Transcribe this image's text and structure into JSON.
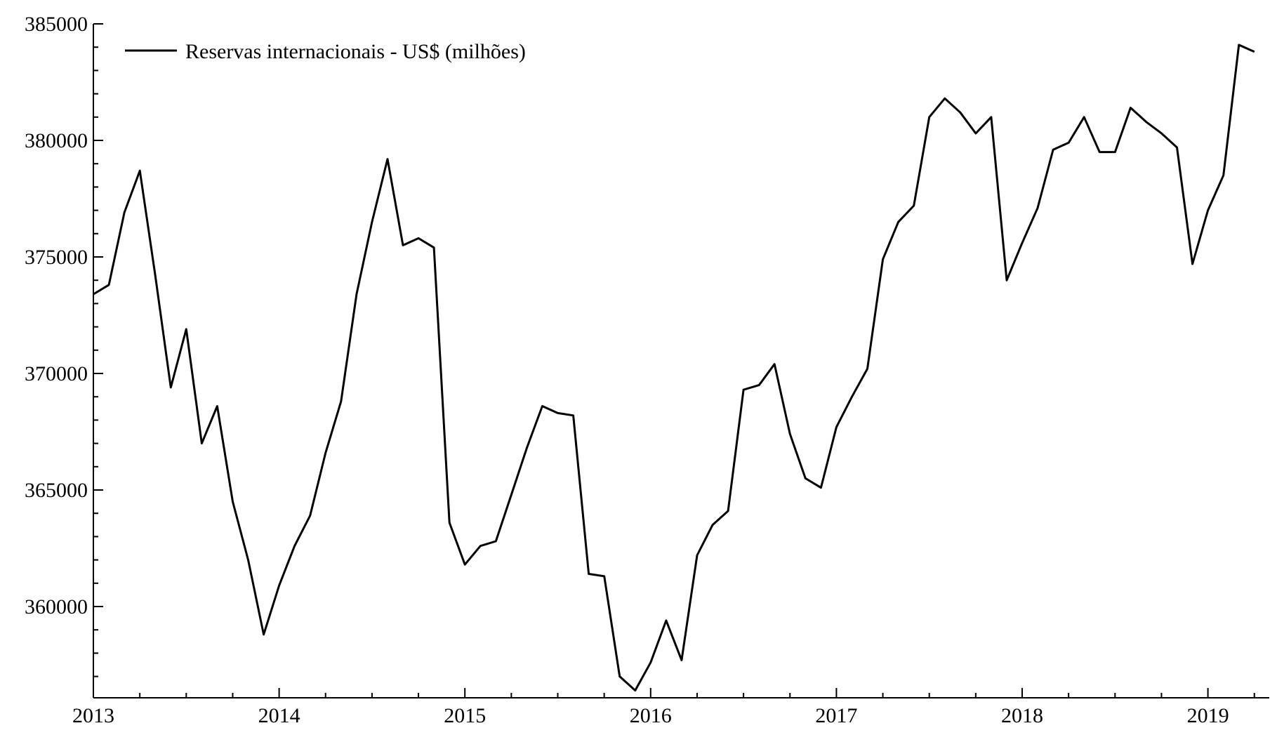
{
  "chart_data": {
    "type": "line",
    "title": "",
    "xlabel": "",
    "ylabel": "",
    "start": "2013-01",
    "frequency": "monthly",
    "xlim": [
      "2013-01",
      "2019-04"
    ],
    "ylim": [
      356000,
      385000
    ],
    "y_ticks": [
      360000,
      365000,
      370000,
      375000,
      380000,
      385000
    ],
    "y_tick_labels": [
      "360000",
      "365000",
      "370000",
      "375000",
      "380000",
      "385000"
    ],
    "x_ticks": [
      "2013",
      "2014",
      "2015",
      "2016",
      "2017",
      "2018",
      "2019"
    ],
    "grid": false,
    "legend_position": "top-left",
    "line_color": "#000000",
    "series": [
      {
        "name": "Reservas internacionais - US$ (milhões)",
        "values": [
          373400,
          373800,
          376900,
          378700,
          374200,
          369400,
          371900,
          367000,
          368600,
          364500,
          362000,
          358800,
          360900,
          362600,
          363900,
          366600,
          368800,
          373400,
          376500,
          379200,
          375500,
          375800,
          375400,
          363600,
          361800,
          362600,
          362800,
          364800,
          366800,
          368600,
          368300,
          368200,
          361400,
          361300,
          357000,
          356400,
          357600,
          359400,
          357700,
          362200,
          363500,
          364100,
          369300,
          369500,
          370400,
          367400,
          365500,
          365100,
          367700,
          369000,
          370200,
          374900,
          376500,
          377200,
          381000,
          381800,
          381200,
          380300,
          381000,
          374000,
          375600,
          377100,
          379600,
          379900,
          381000,
          379500,
          379500,
          381400,
          380800,
          380300,
          379700,
          374700,
          377000,
          378500,
          384100,
          383800
        ]
      }
    ]
  }
}
